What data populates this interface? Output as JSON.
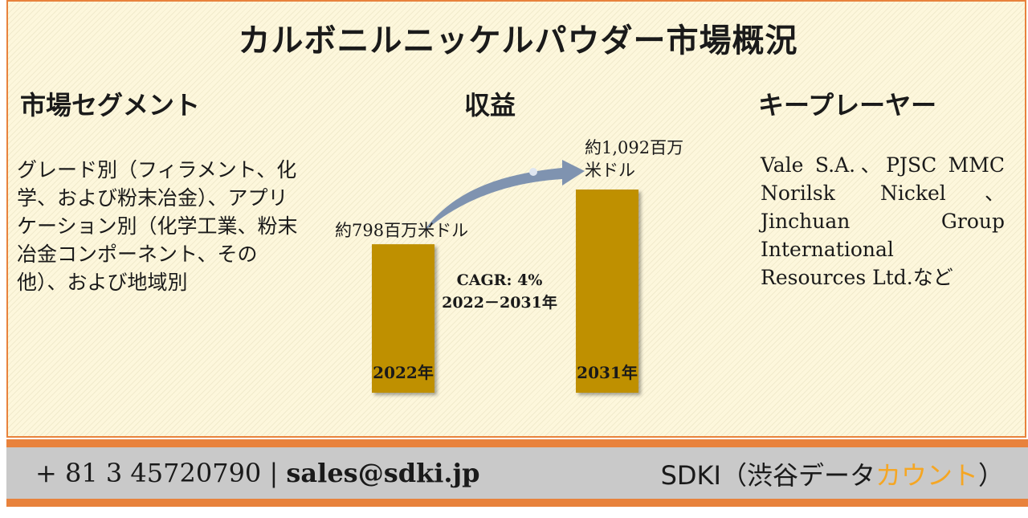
{
  "title": "カルボニルニッケルパウダー市場概況",
  "sections": {
    "segments": {
      "heading": "市場セグメント",
      "text": "グレード別（フィラメント、化学、および粉末冶金）、アプリケーション別（化学工業、粉末冶金コンポーネント、その他）、および地域別"
    },
    "revenue": {
      "heading": "収益"
    },
    "key_players": {
      "heading": "キープレーヤー",
      "text": "Vale S.A.、PJSC MMC Norilsk Nickel、Jinchuan Group International Resources Ltd.など"
    }
  },
  "chart_data": {
    "type": "bar",
    "categories": [
      "2022年",
      "2031年"
    ],
    "values": [
      798,
      1092
    ],
    "value_labels": [
      "約798百万米ドル",
      "約1,092百万米ドル"
    ],
    "unit": "百万米ドル",
    "annotation": {
      "cagr": "CAGR: 4%",
      "period": "2022－2031年"
    },
    "bar_color": "#bf9000",
    "arrow_color": "#7f93b0",
    "title": "",
    "xlabel": "",
    "ylabel": ""
  },
  "footer": {
    "phone": "+ 81 3 45720790",
    "separator": "|",
    "email": "sales@sdki.jp",
    "brand_main": "SDKI（渋谷データ",
    "brand_accent": "カウント",
    "brand_end": "）"
  }
}
